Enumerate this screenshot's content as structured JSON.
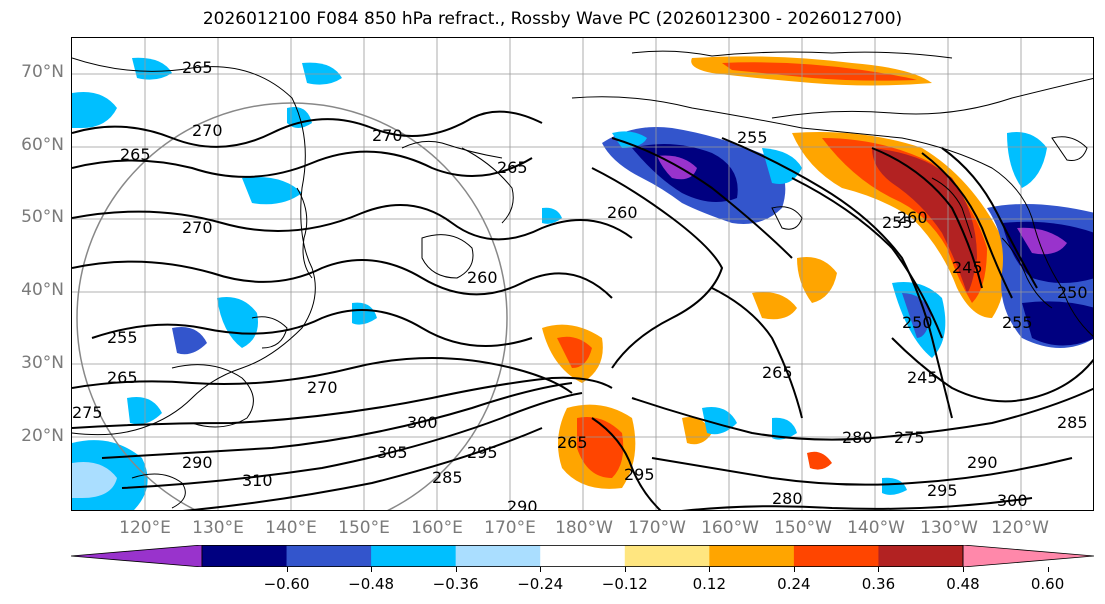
{
  "title": "2026012100 F084 850 hPa refract., Rossby Wave PC (2026012300 - 2026012700)",
  "lat_labels": [
    "70°N",
    "60°N",
    "50°N",
    "40°N",
    "30°N",
    "20°N"
  ],
  "lon_labels": [
    "120°E",
    "130°E",
    "140°E",
    "150°E",
    "160°E",
    "170°E",
    "180°W",
    "170°W",
    "160°W",
    "150°W",
    "140°W",
    "130°W",
    "120°W"
  ],
  "colorbar": {
    "ticks": [
      "−0.60",
      "−0.48",
      "−0.36",
      "−0.24",
      "−0.12",
      "0.12",
      "0.24",
      "0.36",
      "0.48",
      "0.60"
    ],
    "colors": [
      "#9933cc",
      "#000080",
      "#3355cc",
      "#00bfff",
      "#aadeff",
      "#ffffff",
      "#ffe680",
      "#ffa500",
      "#ff4500",
      "#b22222",
      "#ff88aa"
    ]
  },
  "contour_labels": [
    "265",
    "270",
    "265",
    "270",
    "265",
    "270",
    "255",
    "260",
    "255",
    "260",
    "265",
    "270",
    "275",
    "290",
    "310",
    "305",
    "300",
    "295",
    "285",
    "290",
    "265",
    "295",
    "255",
    "260",
    "245",
    "250",
    "265",
    "245",
    "280",
    "275",
    "295",
    "290",
    "300",
    "285",
    "280",
    "255",
    "250"
  ]
}
